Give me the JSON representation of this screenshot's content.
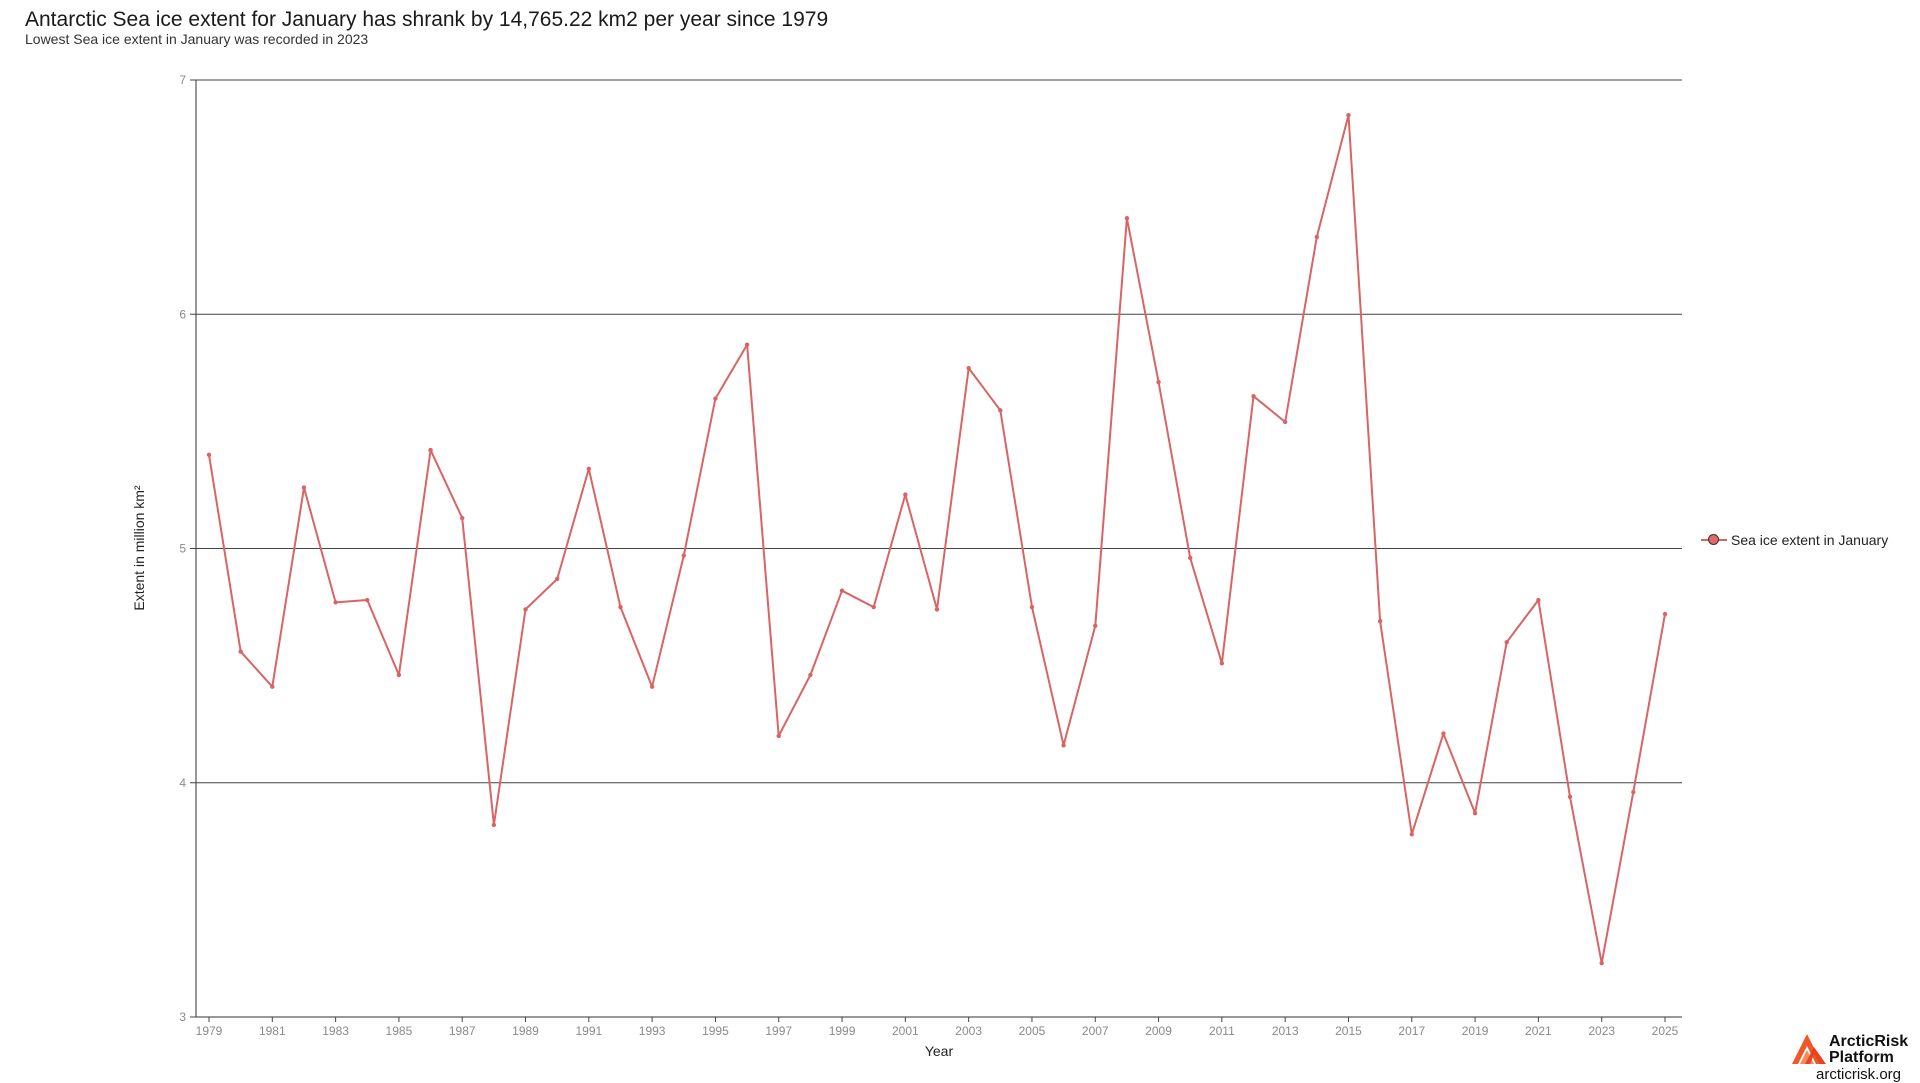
{
  "chart_data": {
    "type": "line",
    "title": "Antarctic Sea ice extent for January has shrank by 14,765.22 km2 per year since 1979",
    "subtitle": "Lowest Sea ice extent in January was recorded in 2023",
    "xlabel": "Year",
    "ylabel": "Extent in million km²",
    "ylim": [
      3,
      7
    ],
    "yticks": [
      3,
      4,
      5,
      6,
      7
    ],
    "xlim": [
      1979,
      2025
    ],
    "xticks": [
      1979,
      1981,
      1983,
      1985,
      1987,
      1989,
      1991,
      1993,
      1995,
      1997,
      1999,
      2001,
      2003,
      2005,
      2007,
      2009,
      2011,
      2013,
      2015,
      2017,
      2019,
      2021,
      2023,
      2025
    ],
    "grid": "horizontal",
    "legend_position": "right",
    "series": [
      {
        "name": "Sea ice extent in January",
        "color": "#d96464",
        "x": [
          1979,
          1980,
          1981,
          1982,
          1983,
          1984,
          1985,
          1986,
          1987,
          1988,
          1989,
          1990,
          1991,
          1992,
          1993,
          1994,
          1995,
          1996,
          1997,
          1998,
          1999,
          2000,
          2001,
          2002,
          2003,
          2004,
          2005,
          2006,
          2007,
          2008,
          2009,
          2010,
          2011,
          2012,
          2013,
          2014,
          2015,
          2016,
          2017,
          2018,
          2019,
          2020,
          2021,
          2022,
          2023,
          2024,
          2025
        ],
        "values": [
          5.4,
          4.56,
          4.41,
          5.26,
          4.77,
          4.78,
          4.46,
          5.42,
          5.13,
          3.82,
          4.74,
          4.87,
          5.34,
          4.75,
          4.41,
          4.97,
          5.64,
          5.87,
          4.2,
          4.46,
          4.82,
          4.75,
          5.23,
          4.74,
          5.77,
          5.59,
          4.75,
          4.16,
          4.67,
          6.41,
          5.71,
          4.96,
          4.51,
          5.65,
          5.54,
          6.33,
          6.85,
          4.69,
          3.78,
          4.21,
          3.87,
          4.6,
          4.78,
          3.94,
          3.23,
          3.96,
          4.72
        ]
      }
    ]
  },
  "legend": {
    "label": "Sea ice extent in January",
    "swatch_color": "#e06a6a"
  },
  "brand": {
    "name_line1": "ArcticRisk",
    "name_line2": "Platform",
    "url": "arcticrisk.org",
    "logo_color": "#f0582a"
  }
}
